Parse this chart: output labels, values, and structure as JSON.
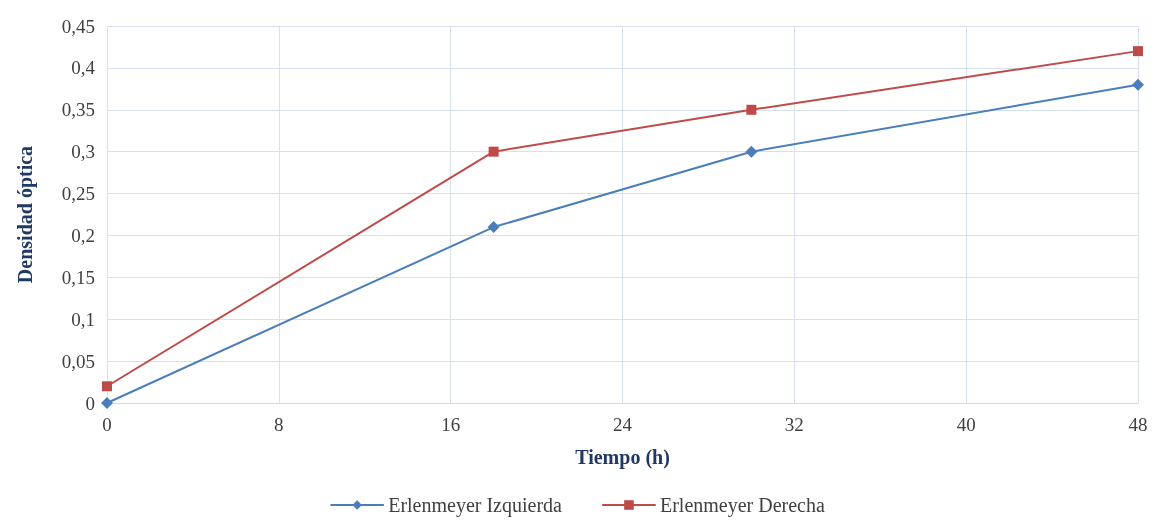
{
  "chart_data": {
    "type": "line",
    "xlabel": "Tiempo (h)",
    "ylabel": "Densidad óptica",
    "xlim": [
      0,
      48
    ],
    "xticks": [
      0,
      8,
      16,
      24,
      32,
      40,
      48
    ],
    "ylim": [
      0,
      0.45
    ],
    "yticks": [
      0,
      {
        "value": 0.05,
        "label": "0,05"
      },
      {
        "value": 0.1,
        "label": "0,1"
      },
      {
        "value": 0.15,
        "label": "0,15"
      },
      {
        "value": 0.2,
        "label": "0,2"
      },
      {
        "value": 0.25,
        "label": "0,25"
      },
      {
        "value": 0.3,
        "label": "0,3"
      },
      {
        "value": 0.35,
        "label": "0,35"
      },
      {
        "value": 0.4,
        "label": "0,4"
      },
      {
        "value": 0.45,
        "label": "0,45"
      }
    ],
    "grid": true,
    "legend": "bottom",
    "line_style": "solid",
    "series": [
      {
        "name": "Erlenmeyer Izquierda",
        "color": "#4a7ebb",
        "marker": "diamond",
        "x": [
          0,
          18,
          30,
          48
        ],
        "values": [
          0,
          0.21,
          0.3,
          0.38
        ]
      },
      {
        "name": "Erlenmeyer Derecha",
        "color": "#be4b48",
        "marker": "square",
        "x": [
          0,
          18,
          30,
          48
        ],
        "values": [
          0.02,
          0.3,
          0.35,
          0.42
        ]
      }
    ]
  }
}
